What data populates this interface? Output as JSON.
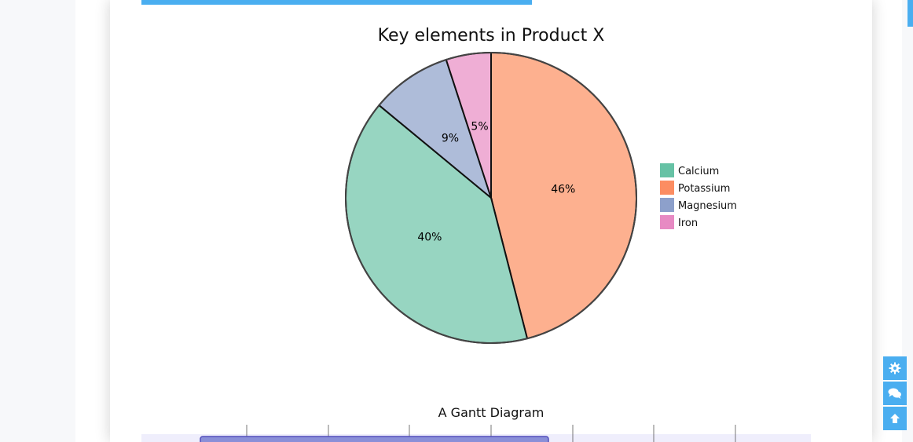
{
  "colors": {
    "accent": "#4aaef0",
    "gantt_band": "#efeefc",
    "gantt_task": "#8a8fd8",
    "gantt_task_border": "#534fbc"
  },
  "chart_data": {
    "type": "pie",
    "title": "Key elements in Product X",
    "legend_position": "right",
    "slices": [
      {
        "label": "Calcium",
        "value": 40,
        "display": "40%",
        "color": "#66c2a5",
        "fill": "#97d5c1"
      },
      {
        "label": "Potassium",
        "value": 46,
        "display": "46%",
        "color": "#fc8d62",
        "fill": "#fdb08f"
      },
      {
        "label": "Magnesium",
        "value": 9,
        "display": "9%",
        "color": "#8da0cb",
        "fill": "#aebcd9"
      },
      {
        "label": "Iron",
        "value": 5,
        "display": "5%",
        "color": "#e78ac3",
        "fill": "#efaed5"
      }
    ]
  },
  "gantt": {
    "title": "A Gantt Diagram"
  },
  "side_buttons": [
    {
      "name": "settings-button",
      "icon": "gear-icon"
    },
    {
      "name": "chat-button",
      "icon": "chat-icon"
    },
    {
      "name": "scroll-top-button",
      "icon": "arrow-up-icon"
    }
  ]
}
